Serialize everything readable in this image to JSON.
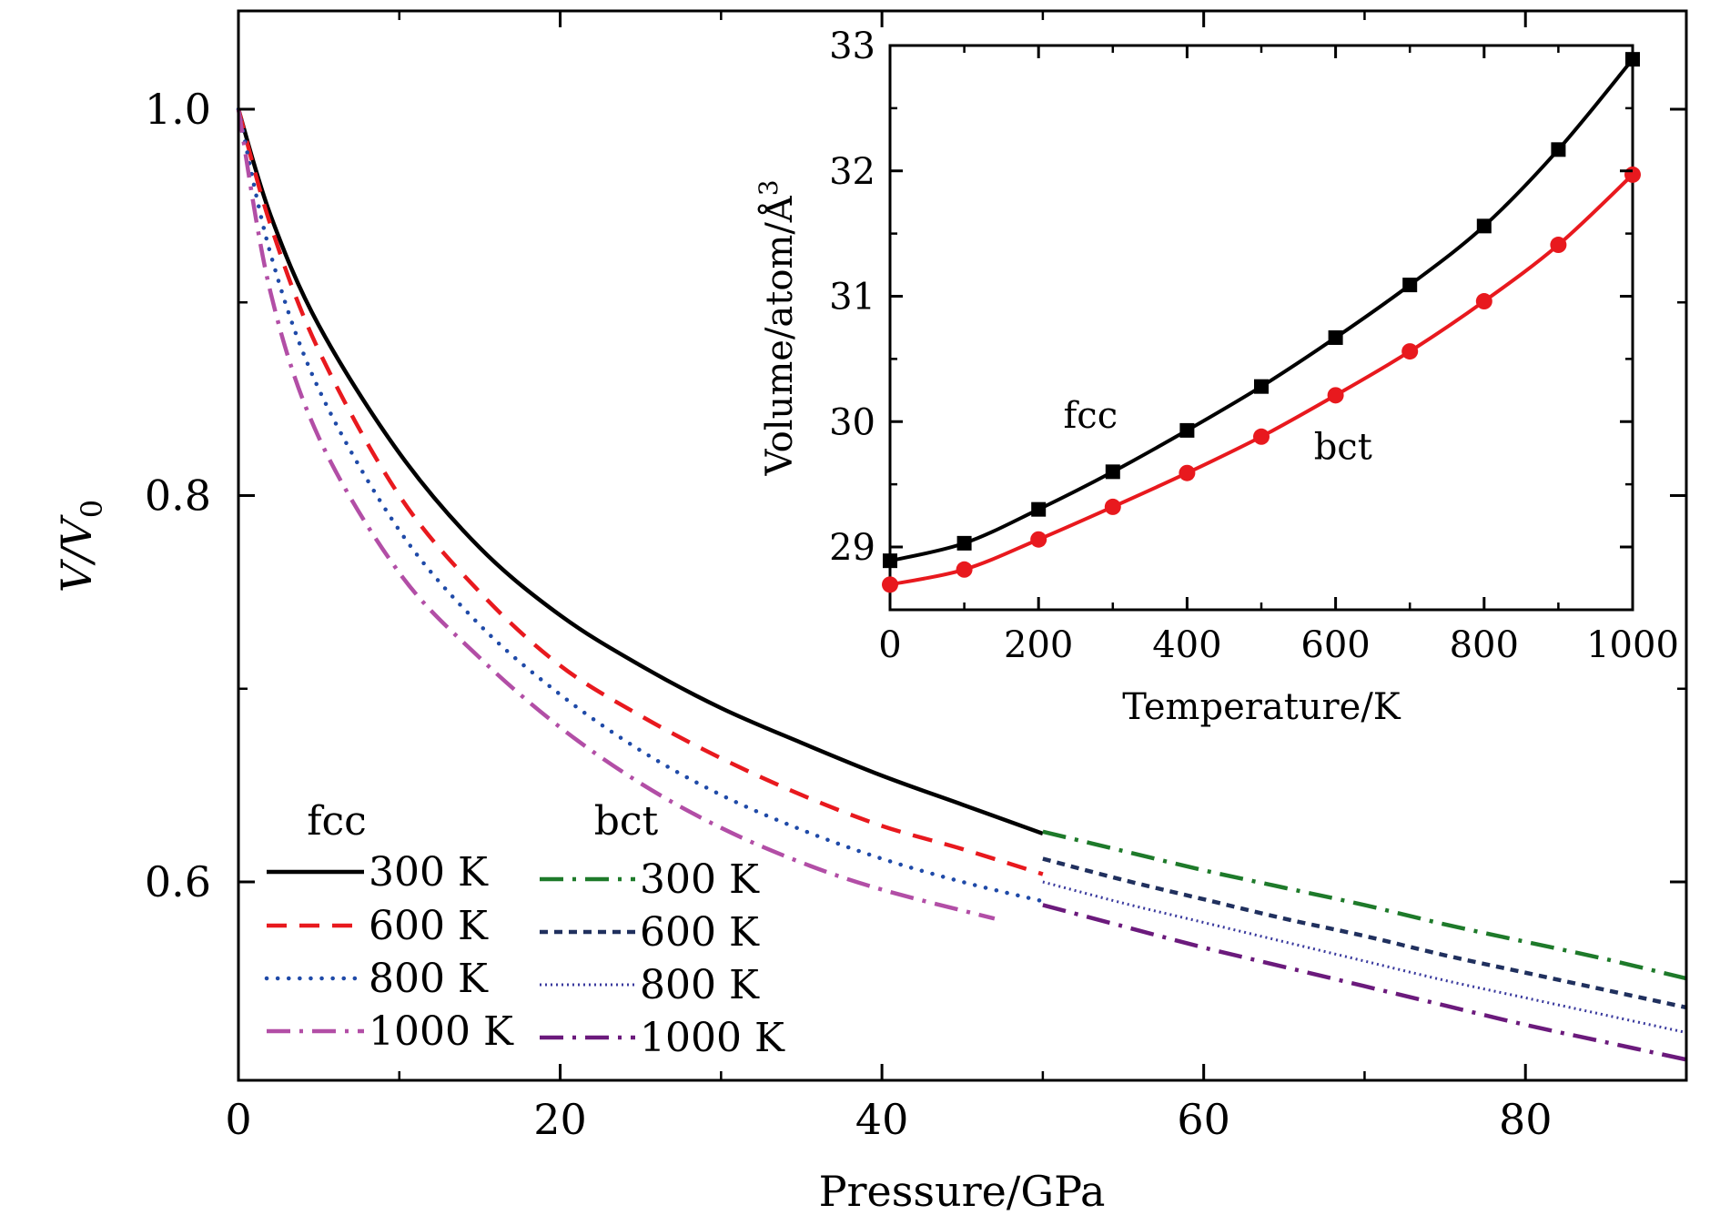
{
  "chart_data": [
    {
      "id": "main",
      "type": "line",
      "title": "",
      "xlabel": "Pressure/GPa",
      "ylabel": "V/V0",
      "ylabel_parts": {
        "main": "V/V",
        "sub": "0"
      },
      "xlim": [
        0,
        90
      ],
      "ylim": [
        0.5,
        1.05
      ],
      "xticks": [
        0,
        20,
        40,
        60,
        80
      ],
      "xtick_labels": [
        "0",
        "20",
        "40",
        "60",
        "80"
      ],
      "yticks": [
        0.6,
        0.8,
        1.0
      ],
      "ytick_labels": [
        "0.6",
        "0.8",
        "1.0"
      ],
      "grid": false,
      "legend": {
        "placement": "bottom-left",
        "group_titles": [
          "fcc",
          "bct"
        ],
        "entries": [
          {
            "group": "fcc",
            "label": "300 K",
            "series": "fcc-300"
          },
          {
            "group": "fcc",
            "label": "600 K",
            "series": "fcc-600"
          },
          {
            "group": "fcc",
            "label": "800 K",
            "series": "fcc-800"
          },
          {
            "group": "fcc",
            "label": "1000 K",
            "series": "fcc-1000"
          },
          {
            "group": "bct",
            "label": "300 K",
            "series": "bct-300"
          },
          {
            "group": "bct",
            "label": "600 K",
            "series": "bct-600"
          },
          {
            "group": "bct",
            "label": "800 K",
            "series": "bct-800"
          },
          {
            "group": "bct",
            "label": "1000 K",
            "series": "bct-1000"
          }
        ]
      },
      "series": [
        {
          "name": "fcc-300",
          "label": "300 K",
          "color": "#000000",
          "style": "solid",
          "x": [
            0,
            2,
            5,
            10,
            15,
            20,
            25,
            30,
            35,
            40,
            45,
            50
          ],
          "y": [
            1.0,
            0.945,
            0.888,
            0.822,
            0.773,
            0.738,
            0.712,
            0.69,
            0.672,
            0.655,
            0.64,
            0.625
          ]
        },
        {
          "name": "fcc-600",
          "label": "600 K",
          "color": "#e8191e",
          "style": "dash",
          "x": [
            0,
            2,
            5,
            10,
            15,
            20,
            25,
            30,
            35,
            40,
            45,
            50
          ],
          "y": [
            1.0,
            0.94,
            0.875,
            0.8,
            0.75,
            0.712,
            0.686,
            0.664,
            0.645,
            0.629,
            0.617,
            0.604
          ]
        },
        {
          "name": "fcc-800",
          "label": "800 K",
          "color": "#1f4aa8",
          "style": "dot",
          "x": [
            0,
            2,
            5,
            10,
            15,
            20,
            25,
            30,
            35,
            40,
            45,
            50
          ],
          "y": [
            1.0,
            0.925,
            0.855,
            0.782,
            0.733,
            0.697,
            0.668,
            0.645,
            0.627,
            0.612,
            0.6,
            0.59
          ]
        },
        {
          "name": "fcc-1000",
          "label": "1000 K",
          "color": "#b24ea6",
          "style": "dashdot",
          "x": [
            0,
            2,
            5,
            10,
            15,
            20,
            25,
            30,
            35,
            40,
            47
          ],
          "y": [
            1.0,
            0.905,
            0.83,
            0.76,
            0.716,
            0.68,
            0.651,
            0.628,
            0.61,
            0.596,
            0.581
          ]
        },
        {
          "name": "bct-300",
          "label": "300 K",
          "color": "#1e7a2a",
          "style": "dashdot",
          "x": [
            50,
            55,
            60,
            65,
            70,
            75,
            80,
            85,
            90
          ],
          "y": [
            0.626,
            0.616,
            0.606,
            0.597,
            0.588,
            0.578,
            0.569,
            0.56,
            0.55
          ]
        },
        {
          "name": "bct-600",
          "label": "600 K",
          "color": "#20305e",
          "style": "shortdash",
          "x": [
            50,
            55,
            60,
            65,
            70,
            75,
            80,
            85,
            90
          ],
          "y": [
            0.612,
            0.601,
            0.591,
            0.581,
            0.572,
            0.562,
            0.553,
            0.544,
            0.535
          ]
        },
        {
          "name": "bct-800",
          "label": "800 K",
          "color": "#3a3a9e",
          "style": "fine-dot",
          "x": [
            50,
            55,
            60,
            65,
            70,
            75,
            80,
            85,
            90
          ],
          "y": [
            0.6,
            0.589,
            0.579,
            0.569,
            0.559,
            0.549,
            0.54,
            0.531,
            0.522
          ]
        },
        {
          "name": "bct-1000",
          "label": "1000 K",
          "color": "#6b1a7c",
          "style": "dashdot",
          "x": [
            50,
            55,
            60,
            65,
            70,
            75,
            80,
            85,
            90
          ],
          "y": [
            0.588,
            0.577,
            0.566,
            0.556,
            0.546,
            0.536,
            0.526,
            0.517,
            0.508
          ]
        }
      ]
    },
    {
      "id": "inset",
      "type": "line",
      "title": "",
      "xlabel": "Temperature/K",
      "ylabel": "Volume/atom/Å3",
      "ylabel_parts": {
        "main": "Volume/atom/Å",
        "sup": "3"
      },
      "xlim": [
        0,
        1000
      ],
      "ylim": [
        28.55,
        33.0
      ],
      "xticks": [
        0,
        200,
        400,
        600,
        800,
        1000
      ],
      "xtick_labels": [
        "0",
        "200",
        "400",
        "600",
        "800",
        "1000"
      ],
      "yticks": [
        29,
        30,
        31,
        32,
        33
      ],
      "ytick_labels": [
        "29",
        "30",
        "31",
        "32",
        "33"
      ],
      "grid": false,
      "annotations": [
        {
          "text": "fcc",
          "x": 270,
          "y": 29.95
        },
        {
          "text": "bct",
          "x": 610,
          "y": 29.7
        }
      ],
      "series": [
        {
          "name": "fcc",
          "color": "#000000",
          "marker": "square",
          "x": [
            0,
            100,
            200,
            300,
            400,
            500,
            600,
            700,
            800,
            900,
            1000
          ],
          "y": [
            28.89,
            29.03,
            29.3,
            29.6,
            29.93,
            30.28,
            30.67,
            31.09,
            31.56,
            32.17,
            32.89
          ]
        },
        {
          "name": "bct",
          "color": "#e8191e",
          "marker": "circle",
          "x": [
            0,
            100,
            200,
            300,
            400,
            500,
            600,
            700,
            800,
            900,
            1000
          ],
          "y": [
            28.7,
            28.82,
            29.06,
            29.32,
            29.59,
            29.88,
            30.21,
            30.56,
            30.96,
            31.41,
            31.97
          ]
        }
      ]
    }
  ]
}
